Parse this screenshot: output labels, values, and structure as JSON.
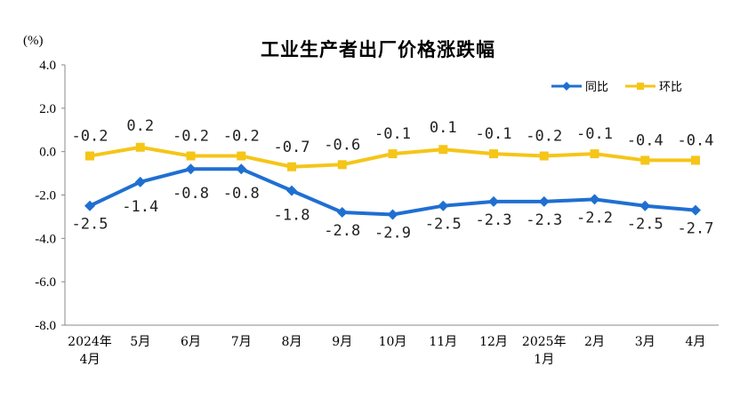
{
  "chart_data": {
    "type": "line",
    "title": "工业生产者出厂价格涨跌幅",
    "unit_label": "(%)",
    "ylim": [
      -8.0,
      4.0
    ],
    "yticks": [
      "4.0",
      "2.0",
      "0.0",
      "-2.0",
      "-4.0",
      "-6.0",
      "-8.0"
    ],
    "ytick_values": [
      4,
      2,
      0,
      -2,
      -4,
      -6,
      -8
    ],
    "categories": [
      [
        "2024年",
        "4月"
      ],
      [
        "5月"
      ],
      [
        "6月"
      ],
      [
        "7月"
      ],
      [
        "8月"
      ],
      [
        "9月"
      ],
      [
        "10月"
      ],
      [
        "11月"
      ],
      [
        "12月"
      ],
      [
        "2025年",
        "1月"
      ],
      [
        "2月"
      ],
      [
        "3月"
      ],
      [
        "4月"
      ]
    ],
    "series": [
      {
        "name": "同比",
        "color": "#1f6fd1",
        "marker": "diamond",
        "values": [
          -2.5,
          -1.4,
          -0.8,
          -0.8,
          -1.8,
          -2.8,
          -2.9,
          -2.5,
          -2.3,
          -2.3,
          -2.2,
          -2.5,
          -2.7
        ],
        "labels": [
          "-2.5",
          "-1.4",
          "-0.8",
          "-0.8",
          "-1.8",
          "-2.8",
          "-2.9",
          "-2.5",
          "-2.3",
          "-2.3",
          "-2.2",
          "-2.5",
          "-2.7"
        ]
      },
      {
        "name": "环比",
        "color": "#f5c518",
        "marker": "square",
        "values": [
          -0.2,
          0.2,
          -0.2,
          -0.2,
          -0.7,
          -0.6,
          -0.1,
          0.1,
          -0.1,
          -0.2,
          -0.1,
          -0.4,
          -0.4
        ],
        "labels": [
          "-0.2",
          "0.2",
          "-0.2",
          "-0.2",
          "-0.7",
          "-0.6",
          "-0.1",
          "0.1",
          "-0.1",
          "-0.2",
          "-0.1",
          "-0.4",
          "-0.4"
        ]
      }
    ],
    "legend_position": "top-right",
    "grid": false
  }
}
